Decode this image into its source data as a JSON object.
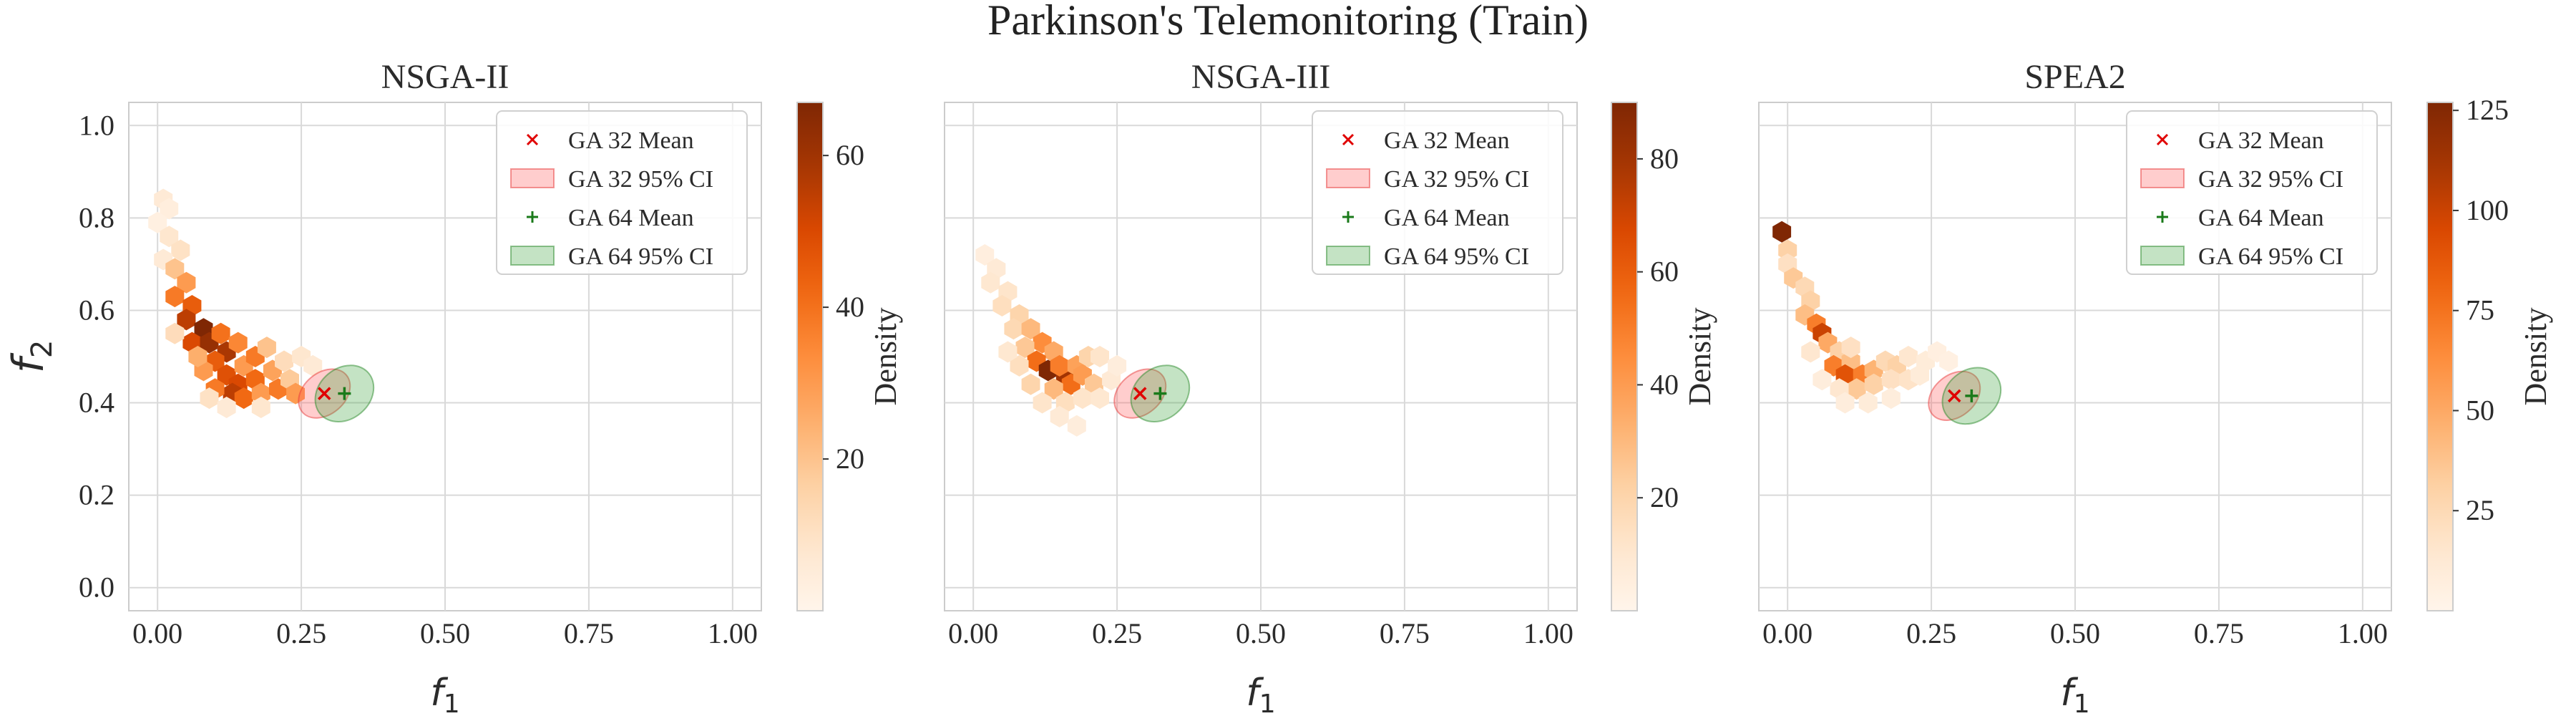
{
  "figure": {
    "title": "Parkinson's Telemonitoring (Train)"
  },
  "chart_data": [
    {
      "type": "heatmap",
      "title": "NSGA-II",
      "xlabel": "f1",
      "ylabel": "f2",
      "xlim": [
        -0.05,
        1.05
      ],
      "ylim": [
        -0.05,
        1.05
      ],
      "xticks": [
        "0.00",
        "0.25",
        "0.50",
        "0.75",
        "1.00"
      ],
      "yticks": [
        "0.0",
        "0.2",
        "0.4",
        "0.6",
        "0.8",
        "1.0"
      ],
      "grid": true,
      "legend_position": "top-right",
      "legend": [
        "GA 32 Mean",
        "GA 32 95% CI",
        "GA 64 Mean",
        "GA 64 95% CI"
      ],
      "colorbar": {
        "label": "Density",
        "min": 0,
        "max": 67,
        "ticks": [
          "20",
          "40",
          "60"
        ],
        "colormap": "Oranges"
      },
      "hexbins": [
        {
          "x": 0.01,
          "y": 0.84,
          "v": 6
        },
        {
          "x": 0.02,
          "y": 0.82,
          "v": 4
        },
        {
          "x": 0.0,
          "y": 0.79,
          "v": 3
        },
        {
          "x": 0.02,
          "y": 0.76,
          "v": 8
        },
        {
          "x": 0.04,
          "y": 0.73,
          "v": 10
        },
        {
          "x": 0.01,
          "y": 0.71,
          "v": 6
        },
        {
          "x": 0.03,
          "y": 0.69,
          "v": 20
        },
        {
          "x": 0.05,
          "y": 0.66,
          "v": 30
        },
        {
          "x": 0.03,
          "y": 0.63,
          "v": 38
        },
        {
          "x": 0.06,
          "y": 0.61,
          "v": 45
        },
        {
          "x": 0.05,
          "y": 0.58,
          "v": 55
        },
        {
          "x": 0.08,
          "y": 0.56,
          "v": 67
        },
        {
          "x": 0.06,
          "y": 0.53,
          "v": 50
        },
        {
          "x": 0.09,
          "y": 0.53,
          "v": 62
        },
        {
          "x": 0.11,
          "y": 0.55,
          "v": 40
        },
        {
          "x": 0.12,
          "y": 0.51,
          "v": 58
        },
        {
          "x": 0.14,
          "y": 0.53,
          "v": 35
        },
        {
          "x": 0.1,
          "y": 0.49,
          "v": 45
        },
        {
          "x": 0.08,
          "y": 0.47,
          "v": 30
        },
        {
          "x": 0.12,
          "y": 0.46,
          "v": 48
        },
        {
          "x": 0.15,
          "y": 0.48,
          "v": 30
        },
        {
          "x": 0.17,
          "y": 0.5,
          "v": 38
        },
        {
          "x": 0.19,
          "y": 0.52,
          "v": 20
        },
        {
          "x": 0.14,
          "y": 0.44,
          "v": 50
        },
        {
          "x": 0.17,
          "y": 0.45,
          "v": 42
        },
        {
          "x": 0.2,
          "y": 0.47,
          "v": 28
        },
        {
          "x": 0.22,
          "y": 0.49,
          "v": 12
        },
        {
          "x": 0.13,
          "y": 0.42,
          "v": 55
        },
        {
          "x": 0.1,
          "y": 0.43,
          "v": 38
        },
        {
          "x": 0.15,
          "y": 0.41,
          "v": 42
        },
        {
          "x": 0.18,
          "y": 0.42,
          "v": 30
        },
        {
          "x": 0.21,
          "y": 0.43,
          "v": 38
        },
        {
          "x": 0.23,
          "y": 0.45,
          "v": 18
        },
        {
          "x": 0.24,
          "y": 0.42,
          "v": 30
        },
        {
          "x": 0.09,
          "y": 0.41,
          "v": 10
        },
        {
          "x": 0.12,
          "y": 0.39,
          "v": 6
        },
        {
          "x": 0.18,
          "y": 0.39,
          "v": 8
        },
        {
          "x": 0.25,
          "y": 0.5,
          "v": 8
        },
        {
          "x": 0.27,
          "y": 0.48,
          "v": 6
        },
        {
          "x": 0.03,
          "y": 0.55,
          "v": 12
        },
        {
          "x": 0.07,
          "y": 0.5,
          "v": 25
        }
      ],
      "ga32_mean": {
        "x": 0.29,
        "y": 0.42
      },
      "ga32_ci": {
        "cx": 0.29,
        "cy": 0.42,
        "rx": 0.05,
        "ry": 0.045,
        "angle_deg": -40
      },
      "ga64_mean": {
        "x": 0.325,
        "y": 0.42
      },
      "ga64_ci": {
        "cx": 0.325,
        "cy": 0.42,
        "rx": 0.055,
        "ry": 0.055,
        "angle_deg": -40
      }
    },
    {
      "type": "heatmap",
      "title": "NSGA-III",
      "xlabel": "f1",
      "ylabel": "",
      "xlim": [
        -0.05,
        1.05
      ],
      "ylim": [
        -0.05,
        1.05
      ],
      "xticks": [
        "0.00",
        "0.25",
        "0.50",
        "0.75",
        "1.00"
      ],
      "yticks": [],
      "grid": true,
      "legend_position": "top-right",
      "legend": [
        "GA 32 Mean",
        "GA 32 95% CI",
        "GA 64 Mean",
        "GA 64 95% CI"
      ],
      "colorbar": {
        "label": "Density",
        "min": 0,
        "max": 90,
        "ticks": [
          "20",
          "40",
          "60",
          "80"
        ],
        "colormap": "Oranges"
      },
      "hexbins": [
        {
          "x": 0.02,
          "y": 0.72,
          "v": 5
        },
        {
          "x": 0.04,
          "y": 0.69,
          "v": 8
        },
        {
          "x": 0.03,
          "y": 0.66,
          "v": 10
        },
        {
          "x": 0.06,
          "y": 0.64,
          "v": 12
        },
        {
          "x": 0.05,
          "y": 0.61,
          "v": 15
        },
        {
          "x": 0.08,
          "y": 0.59,
          "v": 20
        },
        {
          "x": 0.07,
          "y": 0.56,
          "v": 18
        },
        {
          "x": 0.1,
          "y": 0.56,
          "v": 30
        },
        {
          "x": 0.12,
          "y": 0.53,
          "v": 45
        },
        {
          "x": 0.09,
          "y": 0.52,
          "v": 25
        },
        {
          "x": 0.14,
          "y": 0.51,
          "v": 35
        },
        {
          "x": 0.11,
          "y": 0.49,
          "v": 55
        },
        {
          "x": 0.13,
          "y": 0.47,
          "v": 90
        },
        {
          "x": 0.16,
          "y": 0.46,
          "v": 80
        },
        {
          "x": 0.15,
          "y": 0.48,
          "v": 50
        },
        {
          "x": 0.18,
          "y": 0.48,
          "v": 38
        },
        {
          "x": 0.2,
          "y": 0.5,
          "v": 20
        },
        {
          "x": 0.17,
          "y": 0.44,
          "v": 55
        },
        {
          "x": 0.19,
          "y": 0.46,
          "v": 40
        },
        {
          "x": 0.21,
          "y": 0.44,
          "v": 25
        },
        {
          "x": 0.14,
          "y": 0.43,
          "v": 30
        },
        {
          "x": 0.1,
          "y": 0.44,
          "v": 20
        },
        {
          "x": 0.08,
          "y": 0.48,
          "v": 15
        },
        {
          "x": 0.12,
          "y": 0.4,
          "v": 12
        },
        {
          "x": 0.16,
          "y": 0.4,
          "v": 15
        },
        {
          "x": 0.19,
          "y": 0.41,
          "v": 12
        },
        {
          "x": 0.22,
          "y": 0.41,
          "v": 10
        },
        {
          "x": 0.24,
          "y": 0.45,
          "v": 8
        },
        {
          "x": 0.15,
          "y": 0.37,
          "v": 8
        },
        {
          "x": 0.18,
          "y": 0.35,
          "v": 6
        },
        {
          "x": 0.22,
          "y": 0.5,
          "v": 12
        },
        {
          "x": 0.06,
          "y": 0.51,
          "v": 10
        },
        {
          "x": 0.25,
          "y": 0.48,
          "v": 6
        }
      ],
      "ga32_mean": {
        "x": 0.29,
        "y": 0.42
      },
      "ga32_ci": {
        "cx": 0.29,
        "cy": 0.42,
        "rx": 0.05,
        "ry": 0.045,
        "angle_deg": -40
      },
      "ga64_mean": {
        "x": 0.325,
        "y": 0.42
      },
      "ga64_ci": {
        "cx": 0.325,
        "cy": 0.42,
        "rx": 0.055,
        "ry": 0.055,
        "angle_deg": -40
      }
    },
    {
      "type": "heatmap",
      "title": "SPEA2",
      "xlabel": "f1",
      "ylabel": "",
      "xlim": [
        -0.05,
        1.05
      ],
      "ylim": [
        -0.05,
        1.05
      ],
      "xticks": [
        "0.00",
        "0.25",
        "0.50",
        "0.75",
        "1.00"
      ],
      "yticks": [],
      "grid": true,
      "legend_position": "top-right",
      "legend": [
        "GA 32 Mean",
        "GA 32 95% CI",
        "GA 64 Mean",
        "GA 64 95% CI"
      ],
      "colorbar": {
        "label": "Density",
        "min": 0,
        "max": 127,
        "ticks": [
          "25",
          "50",
          "75",
          "100",
          "125"
        ],
        "colormap": "Oranges"
      },
      "hexbins": [
        {
          "x": -0.01,
          "y": 0.77,
          "v": 127
        },
        {
          "x": 0.0,
          "y": 0.73,
          "v": 30
        },
        {
          "x": 0.0,
          "y": 0.7,
          "v": 20
        },
        {
          "x": 0.01,
          "y": 0.67,
          "v": 35
        },
        {
          "x": 0.03,
          "y": 0.65,
          "v": 25
        },
        {
          "x": 0.04,
          "y": 0.62,
          "v": 30
        },
        {
          "x": 0.03,
          "y": 0.59,
          "v": 40
        },
        {
          "x": 0.05,
          "y": 0.57,
          "v": 70
        },
        {
          "x": 0.06,
          "y": 0.55,
          "v": 100
        },
        {
          "x": 0.07,
          "y": 0.53,
          "v": 50
        },
        {
          "x": 0.09,
          "y": 0.51,
          "v": 30
        },
        {
          "x": 0.08,
          "y": 0.48,
          "v": 70
        },
        {
          "x": 0.11,
          "y": 0.49,
          "v": 40
        },
        {
          "x": 0.1,
          "y": 0.46,
          "v": 90
        },
        {
          "x": 0.13,
          "y": 0.46,
          "v": 70
        },
        {
          "x": 0.15,
          "y": 0.47,
          "v": 45
        },
        {
          "x": 0.17,
          "y": 0.49,
          "v": 25
        },
        {
          "x": 0.19,
          "y": 0.48,
          "v": 30
        },
        {
          "x": 0.21,
          "y": 0.5,
          "v": 15
        },
        {
          "x": 0.24,
          "y": 0.49,
          "v": 10
        },
        {
          "x": 0.26,
          "y": 0.51,
          "v": 6
        },
        {
          "x": 0.28,
          "y": 0.49,
          "v": 5
        },
        {
          "x": 0.12,
          "y": 0.43,
          "v": 35
        },
        {
          "x": 0.15,
          "y": 0.44,
          "v": 30
        },
        {
          "x": 0.18,
          "y": 0.45,
          "v": 20
        },
        {
          "x": 0.21,
          "y": 0.45,
          "v": 18
        },
        {
          "x": 0.23,
          "y": 0.46,
          "v": 10
        },
        {
          "x": 0.09,
          "y": 0.43,
          "v": 15
        },
        {
          "x": 0.06,
          "y": 0.45,
          "v": 8
        },
        {
          "x": 0.1,
          "y": 0.4,
          "v": 8
        },
        {
          "x": 0.14,
          "y": 0.4,
          "v": 10
        },
        {
          "x": 0.18,
          "y": 0.41,
          "v": 8
        },
        {
          "x": 0.04,
          "y": 0.51,
          "v": 15
        },
        {
          "x": 0.11,
          "y": 0.52,
          "v": 20
        }
      ],
      "ga32_mean": {
        "x": 0.29,
        "y": 0.415
      },
      "ga32_ci": {
        "cx": 0.29,
        "cy": 0.415,
        "rx": 0.05,
        "ry": 0.045,
        "angle_deg": -40
      },
      "ga64_mean": {
        "x": 0.32,
        "y": 0.415
      },
      "ga64_ci": {
        "cx": 0.32,
        "cy": 0.415,
        "rx": 0.055,
        "ry": 0.055,
        "angle_deg": -40
      }
    }
  ]
}
